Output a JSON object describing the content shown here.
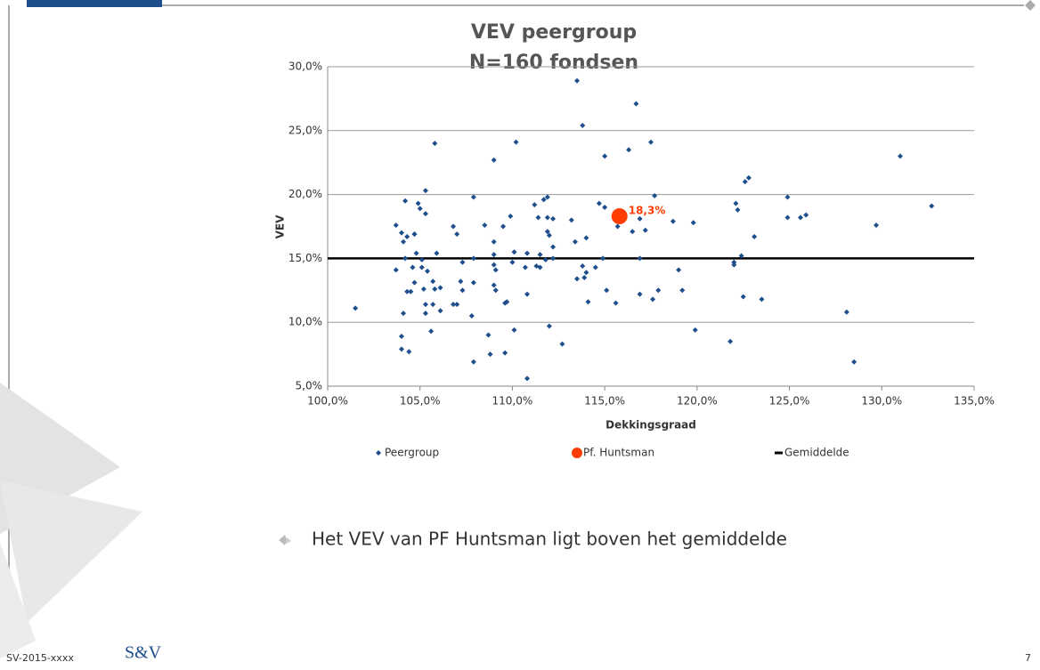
{
  "chart_data": {
    "type": "scatter",
    "title": "VEV peergroup",
    "subtitle": "N=160 fondsen",
    "x_label": "Dekkingsgraad",
    "y_label": "VEV",
    "xlim": [
      100,
      135
    ],
    "xticks": [
      {
        "value": 100,
        "label": "100,0%"
      },
      {
        "value": 105,
        "label": "105,0%"
      },
      {
        "value": 110,
        "label": "110,0%"
      },
      {
        "value": 115,
        "label": "115,0%"
      },
      {
        "value": 120,
        "label": "120,0%"
      },
      {
        "value": 125,
        "label": "125,0%"
      },
      {
        "value": 130,
        "label": "130,0%"
      },
      {
        "value": 135,
        "label": "135,0%"
      }
    ],
    "ylim": [
      5,
      30
    ],
    "yticks": [
      {
        "value": 5,
        "label": "5,0%"
      },
      {
        "value": 10,
        "label": "10,0%"
      },
      {
        "value": 15,
        "label": "15,0%"
      },
      {
        "value": 20,
        "label": "20,0%"
      },
      {
        "value": 25,
        "label": "25,0%"
      },
      {
        "value": 30,
        "label": "30,0%"
      }
    ],
    "grid": true,
    "series": [
      {
        "name": "Peergroup",
        "color": "#1f4e8c",
        "marker": "diamond",
        "x": [
          101.5,
          103.7,
          103.7,
          104.0,
          104.0,
          104.0,
          104.1,
          104.2,
          104.1,
          104.2,
          104.3,
          104.3,
          104.5,
          104.4,
          104.6,
          104.7,
          104.7,
          104.7,
          104.8,
          104.9,
          105.0,
          105.1,
          105.1,
          105.2,
          105.3,
          105.3,
          105.3,
          105.3,
          105.4,
          105.6,
          105.7,
          105.7,
          105.8,
          105.8,
          105.9,
          106.1,
          106.1,
          106.8,
          107.0,
          106.8,
          107.0,
          107.2,
          107.3,
          107.3,
          107.8,
          107.9,
          107.9,
          107.9,
          107.9,
          108.5,
          108.7,
          108.8,
          109.0,
          109.0,
          109.0,
          109.0,
          109.1,
          109.0,
          109.1,
          109.5,
          109.6,
          109.6,
          109.7,
          109.9,
          110.0,
          110.1,
          110.1,
          110.2,
          110.7,
          110.8,
          110.8,
          110.8,
          111.2,
          111.4,
          111.3,
          111.5,
          111.5,
          111.7,
          111.8,
          111.9,
          111.9,
          111.9,
          112.0,
          112.0,
          112.2,
          112.2,
          112.2,
          112.7,
          113.2,
          113.4,
          113.5,
          113.5,
          113.8,
          113.8,
          113.9,
          114.0,
          114.0,
          114.1,
          114.5,
          114.7,
          114.9,
          115.0,
          115.0,
          115.1,
          115.6,
          115.7,
          116.3,
          116.5,
          116.7,
          116.9,
          116.9,
          116.9,
          117.2,
          117.5,
          117.6,
          117.7,
          117.9,
          118.7,
          119.0,
          119.2,
          119.8,
          119.9,
          121.8,
          122.0,
          122.0,
          122.1,
          122.2,
          122.4,
          122.5,
          122.6,
          122.8,
          123.1,
          123.5,
          124.9,
          124.9,
          125.6,
          125.9,
          128.1,
          128.5,
          129.7,
          131.0,
          132.7
        ],
        "values": [
          11.1,
          17.6,
          14.1,
          17.0,
          8.9,
          7.9,
          10.7,
          19.5,
          16.3,
          15.0,
          16.7,
          12.4,
          12.4,
          7.7,
          14.3,
          16.9,
          16.9,
          13.1,
          15.4,
          19.3,
          18.9,
          14.3,
          14.9,
          12.6,
          20.3,
          18.5,
          10.7,
          11.4,
          14.0,
          9.3,
          13.2,
          11.4,
          12.6,
          24.0,
          15.4,
          12.7,
          10.9,
          17.5,
          16.9,
          11.4,
          11.4,
          13.2,
          14.7,
          12.5,
          10.5,
          19.8,
          15.0,
          13.1,
          6.9,
          17.6,
          9.0,
          7.5,
          22.7,
          16.3,
          15.3,
          14.5,
          14.1,
          12.9,
          12.5,
          17.5,
          11.5,
          7.6,
          11.6,
          18.3,
          14.7,
          15.5,
          9.4,
          24.1,
          14.3,
          15.4,
          12.2,
          5.6,
          19.2,
          18.2,
          14.4,
          14.3,
          15.3,
          19.6,
          14.9,
          19.8,
          18.2,
          17.1,
          16.8,
          9.7,
          18.1,
          15.9,
          15.0,
          8.3,
          18.0,
          16.3,
          13.4,
          28.9,
          25.4,
          14.4,
          13.5,
          13.9,
          16.6,
          11.6,
          14.3,
          19.3,
          15.0,
          23.0,
          19.0,
          12.5,
          11.5,
          17.5,
          23.5,
          17.1,
          27.1,
          18.1,
          15.0,
          12.2,
          17.2,
          24.1,
          11.8,
          19.9,
          12.5,
          17.9,
          14.1,
          12.5,
          17.8,
          9.4,
          8.5,
          14.7,
          14.5,
          19.3,
          18.8,
          15.2,
          12.0,
          21.0,
          21.3,
          16.7,
          11.8,
          19.8,
          18.2,
          18.2,
          18.4,
          10.8,
          6.9,
          17.6,
          23.0,
          19.1
        ]
      },
      {
        "name": "Pf. Huntsman",
        "color": "#ff3d00",
        "marker": "circle",
        "x": [
          115.8
        ],
        "values": [
          18.3
        ],
        "value_labels": [
          "18,3%"
        ]
      }
    ],
    "reference_lines": [
      {
        "name": "Gemiddelde",
        "value": 15,
        "color": "#000000"
      }
    ]
  },
  "bullet": "Het VEV van PF Huntsman ligt boven het gemiddelde",
  "footer": {
    "code": "SV-2015-xxxx",
    "logo": "S&V",
    "page": "7"
  }
}
